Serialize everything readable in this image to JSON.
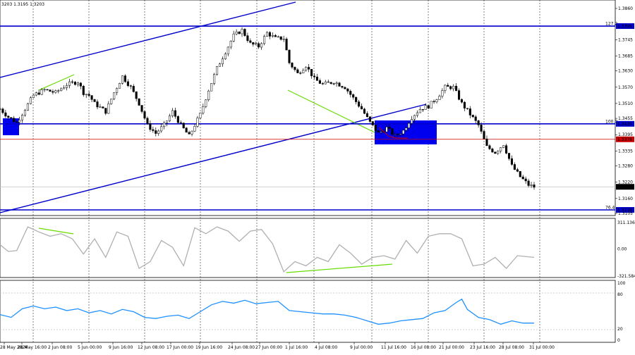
{
  "chart_header": {
    "text": "3203 1.3195 1.3203"
  },
  "main_chart": {
    "price_axis": [
      {
        "label": "1.3860",
        "value": 1.386
      },
      {
        "label": "1.3745",
        "value": 1.3745
      },
      {
        "label": "1.3685",
        "value": 1.3685
      },
      {
        "label": "1.3630",
        "value": 1.363
      },
      {
        "label": "1.3570",
        "value": 1.357
      },
      {
        "label": "1.3510",
        "value": 1.351
      },
      {
        "label": "1.3455",
        "value": 1.3455
      },
      {
        "label": "1.3395",
        "value": 1.3395
      },
      {
        "label": "1.3335",
        "value": 1.3335
      },
      {
        "label": "1.3280",
        "value": 1.328
      },
      {
        "label": "1.3220",
        "value": 1.322
      },
      {
        "label": "1.3160",
        "value": 1.316
      },
      {
        "label": "1.3105",
        "value": 1.3105
      }
    ],
    "levels": [
      {
        "name": "fib-127-2",
        "label": "127.2",
        "value": 1.3795,
        "tag": "1.3795",
        "color": "#0000cc",
        "tag_bg": "#0000cc"
      },
      {
        "name": "fib-100",
        "label": "100.0",
        "value": 1.3435,
        "tag": "1.3435",
        "color": "#0000cc",
        "tag_bg": "#0000cc"
      },
      {
        "name": "fib-76-4",
        "label": "76.4",
        "value": 1.3118,
        "tag": "1.3118",
        "color": "#0000cc",
        "tag_bg": "#0000cc"
      },
      {
        "name": "horizontal-red",
        "label": "",
        "value": 1.3378,
        "tag": "1.3378",
        "color": "#cc0000",
        "tag_bg": "#cc0000"
      }
    ],
    "current_price": {
      "value": 1.3203,
      "tag": "1.3203"
    }
  },
  "cci_panel": {
    "axis": [
      {
        "label": "311.136",
        "value": 311.136
      },
      {
        "label": "0.00",
        "value": 0
      },
      {
        "label": "-321.584",
        "value": -321.584
      }
    ]
  },
  "rsi_panel": {
    "axis": [
      {
        "label": "100",
        "value": 100
      },
      {
        "label": "80",
        "value": 80
      },
      {
        "label": "20",
        "value": 20
      },
      {
        "label": "0",
        "value": 0
      }
    ]
  },
  "time_axis": [
    "28 May 2024",
    "28 May 16:00",
    "2 Jun 08:00",
    "5 Jun 00:00",
    "9 Jun 16:00",
    "12 Jun 08:00",
    "17 Jun 00:00",
    "19 Jun 16:00",
    "24 Jun 08:00",
    "27 Jun 00:00",
    "1 Jul 16:00",
    "4 Jul 08:00",
    "9 Jul 00:00",
    "11 Jul 16:00",
    "16 Jul 08:00",
    "21 Jul 00:00",
    "23 Jul 16:00",
    "28 Jul 08:00",
    "31 Jul 00:00"
  ],
  "colors": {
    "trend_channel": "#0000cc",
    "divergence": "#66dd00",
    "zone": "#0000ee",
    "cci_line": "#b0b0b0",
    "rsi_line": "#1e90ff",
    "candle": "#000000"
  },
  "chart_data": {
    "type": "line",
    "title": "",
    "xlabel": "",
    "ylabel": "",
    "ylim": [
      1.3105,
      1.386
    ],
    "x": [
      "28 May",
      "2 Jun",
      "5 Jun",
      "9 Jun",
      "12 Jun",
      "17 Jun",
      "19 Jun",
      "24 Jun",
      "27 Jun",
      "1 Jul",
      "4 Jul",
      "9 Jul",
      "11 Jul",
      "16 Jul",
      "21 Jul",
      "23 Jul",
      "28 Jul",
      "31 Jul"
    ],
    "close_path": [
      [
        0,
        1.349
      ],
      [
        3,
        1.346
      ],
      [
        6,
        1.344
      ],
      [
        9,
        1.349
      ],
      [
        12,
        1.354
      ],
      [
        16,
        1.356
      ],
      [
        20,
        1.355
      ],
      [
        24,
        1.358
      ],
      [
        28,
        1.359
      ],
      [
        30,
        1.355
      ],
      [
        32,
        1.354
      ],
      [
        34,
        1.351
      ],
      [
        38,
        1.348
      ],
      [
        41,
        1.355
      ],
      [
        44,
        1.361
      ],
      [
        47,
        1.357
      ],
      [
        50,
        1.351
      ],
      [
        53,
        1.343
      ],
      [
        56,
        1.34
      ],
      [
        59,
        1.343
      ],
      [
        62,
        1.348
      ],
      [
        65,
        1.343
      ],
      [
        68,
        1.339
      ],
      [
        72,
        1.347
      ],
      [
        75,
        1.356
      ],
      [
        78,
        1.364
      ],
      [
        81,
        1.37
      ],
      [
        84,
        1.376
      ],
      [
        87,
        1.378
      ],
      [
        90,
        1.373
      ],
      [
        93,
        1.372
      ],
      [
        96,
        1.377
      ],
      [
        99,
        1.375
      ],
      [
        102,
        1.375
      ],
      [
        104,
        1.366
      ],
      [
        107,
        1.362
      ],
      [
        110,
        1.365
      ],
      [
        113,
        1.36
      ],
      [
        116,
        1.358
      ],
      [
        120,
        1.359
      ],
      [
        124,
        1.357
      ],
      [
        127,
        1.353
      ],
      [
        130,
        1.349
      ],
      [
        133,
        1.344
      ],
      [
        136,
        1.34
      ],
      [
        139,
        1.342
      ],
      [
        142,
        1.339
      ],
      [
        145,
        1.341
      ],
      [
        148,
        1.346
      ],
      [
        151,
        1.349
      ],
      [
        154,
        1.35
      ],
      [
        157,
        1.353
      ],
      [
        160,
        1.357
      ],
      [
        163,
        1.357
      ],
      [
        166,
        1.351
      ],
      [
        169,
        1.347
      ],
      [
        172,
        1.343
      ],
      [
        175,
        1.335
      ],
      [
        178,
        1.333
      ],
      [
        181,
        1.336
      ],
      [
        184,
        1.328
      ],
      [
        187,
        1.324
      ],
      [
        190,
        1.321
      ],
      [
        192,
        1.3203
      ]
    ],
    "cci_path": [
      [
        0,
        50
      ],
      [
        3,
        -30
      ],
      [
        6,
        -20
      ],
      [
        10,
        260
      ],
      [
        14,
        200
      ],
      [
        18,
        150
      ],
      [
        22,
        180
      ],
      [
        26,
        120
      ],
      [
        30,
        -60
      ],
      [
        34,
        120
      ],
      [
        38,
        -100
      ],
      [
        42,
        200
      ],
      [
        46,
        150
      ],
      [
        50,
        -230
      ],
      [
        54,
        -150
      ],
      [
        58,
        100
      ],
      [
        62,
        20
      ],
      [
        66,
        -200
      ],
      [
        70,
        250
      ],
      [
        74,
        180
      ],
      [
        78,
        260
      ],
      [
        82,
        210
      ],
      [
        86,
        90
      ],
      [
        90,
        210
      ],
      [
        94,
        230
      ],
      [
        98,
        60
      ],
      [
        102,
        -270
      ],
      [
        106,
        -150
      ],
      [
        110,
        -200
      ],
      [
        114,
        -100
      ],
      [
        118,
        -150
      ],
      [
        122,
        50
      ],
      [
        126,
        -50
      ],
      [
        130,
        -180
      ],
      [
        134,
        -100
      ],
      [
        138,
        -80
      ],
      [
        142,
        -120
      ],
      [
        146,
        100
      ],
      [
        150,
        -50
      ],
      [
        154,
        150
      ],
      [
        158,
        180
      ],
      [
        162,
        180
      ],
      [
        166,
        120
      ],
      [
        170,
        -200
      ],
      [
        174,
        -180
      ],
      [
        178,
        -100
      ],
      [
        182,
        -230
      ],
      [
        186,
        -80
      ],
      [
        192,
        -100
      ]
    ],
    "rsi_path": [
      [
        0,
        45
      ],
      [
        4,
        40
      ],
      [
        8,
        55
      ],
      [
        12,
        60
      ],
      [
        16,
        55
      ],
      [
        20,
        58
      ],
      [
        24,
        52
      ],
      [
        28,
        55
      ],
      [
        32,
        48
      ],
      [
        36,
        52
      ],
      [
        40,
        46
      ],
      [
        44,
        54
      ],
      [
        48,
        50
      ],
      [
        52,
        40
      ],
      [
        56,
        38
      ],
      [
        60,
        42
      ],
      [
        64,
        44
      ],
      [
        68,
        38
      ],
      [
        72,
        50
      ],
      [
        76,
        62
      ],
      [
        80,
        68
      ],
      [
        84,
        65
      ],
      [
        88,
        70
      ],
      [
        92,
        64
      ],
      [
        96,
        66
      ],
      [
        100,
        68
      ],
      [
        104,
        52
      ],
      [
        108,
        50
      ],
      [
        112,
        48
      ],
      [
        116,
        46
      ],
      [
        120,
        46
      ],
      [
        124,
        44
      ],
      [
        128,
        40
      ],
      [
        132,
        34
      ],
      [
        136,
        28
      ],
      [
        140,
        30
      ],
      [
        144,
        34
      ],
      [
        148,
        36
      ],
      [
        152,
        38
      ],
      [
        156,
        48
      ],
      [
        160,
        52
      ],
      [
        164,
        66
      ],
      [
        166,
        72
      ],
      [
        168,
        54
      ],
      [
        172,
        40
      ],
      [
        176,
        36
      ],
      [
        180,
        28
      ],
      [
        184,
        34
      ],
      [
        188,
        30
      ],
      [
        192,
        30
      ]
    ]
  }
}
